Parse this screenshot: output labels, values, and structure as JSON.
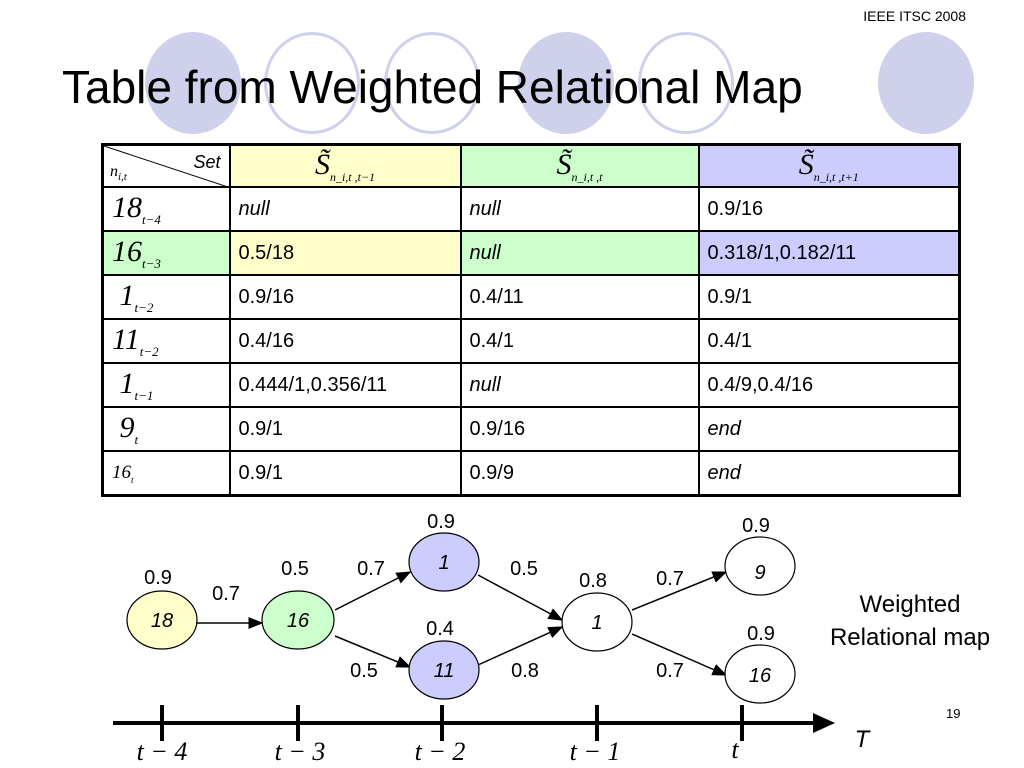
{
  "header": {
    "conference": "IEEE ITSC 2008",
    "title": "Table from Weighted Relational Map"
  },
  "table": {
    "corner_row_label": "n",
    "corner_row_sub": "i,t",
    "corner_col_label": "Set",
    "columns": [
      {
        "symbol": "S̃",
        "sub": "n_i,t ,t−1",
        "color": "#ffffcc"
      },
      {
        "symbol": "S̃",
        "sub": "n_i,t ,t",
        "color": "#ccffcc"
      },
      {
        "symbol": "S̃",
        "sub": "n_i,t ,t+1",
        "color": "#ccccff"
      }
    ],
    "rows": [
      {
        "node": "18",
        "time": "t−4",
        "cells": [
          "null",
          "null",
          "0.9/16"
        ]
      },
      {
        "node": "16",
        "time": "t−3",
        "cells": [
          "0.5/18",
          "null",
          "0.318/1,0.182/11"
        ]
      },
      {
        "node": "1",
        "time": "t−2",
        "cells": [
          "0.9/16",
          "0.4/11",
          "0.9/1"
        ]
      },
      {
        "node": "11",
        "time": "t−2",
        "cells": [
          "0.4/16",
          "0.4/1",
          "0.4/1"
        ]
      },
      {
        "node": "1",
        "time": "t−1",
        "cells": [
          "0.444/1,0.356/11",
          "null",
          "0.4/9,0.4/16"
        ]
      },
      {
        "node": "9",
        "time": "t",
        "cells": [
          "0.9/1",
          "0.9/16",
          "end"
        ]
      },
      {
        "node": "16",
        "time": "t",
        "cells": [
          "0.9/1",
          "0.9/9",
          "end"
        ]
      }
    ]
  },
  "map": {
    "caption_line1": "Weighted",
    "caption_line2": "Relational map",
    "nodes": [
      {
        "label": "18",
        "weight": "0.9",
        "color": "#ffffcc"
      },
      {
        "label": "16",
        "weight": "0.5",
        "color": "#ccffcc"
      },
      {
        "label": "1",
        "weight": "0.9",
        "color": "#ccccff"
      },
      {
        "label": "11",
        "weight": "0.4",
        "color": "#ccccff"
      },
      {
        "label": "1",
        "weight": "0.8",
        "color": "#ffffff"
      },
      {
        "label": "9",
        "weight": "0.9",
        "color": "#ffffff"
      },
      {
        "label": "16",
        "weight": "0.9",
        "color": "#ffffff"
      }
    ],
    "edges": [
      {
        "from": "18",
        "to": "16",
        "weight": "0.7"
      },
      {
        "from": "16",
        "to": "1",
        "weight": "0.7"
      },
      {
        "from": "16",
        "to": "11",
        "weight": "0.5"
      },
      {
        "from": "1",
        "to": "1",
        "weight": "0.5"
      },
      {
        "from": "11",
        "to": "1",
        "weight": "0.8"
      },
      {
        "from": "1",
        "to": "9",
        "weight": "0.7"
      },
      {
        "from": "1",
        "to": "16",
        "weight": "0.7"
      }
    ],
    "axis_label": "T",
    "time_labels": [
      "t − 4",
      "t − 3",
      "t − 2",
      "t − 1",
      "t"
    ]
  },
  "page_number": "19"
}
